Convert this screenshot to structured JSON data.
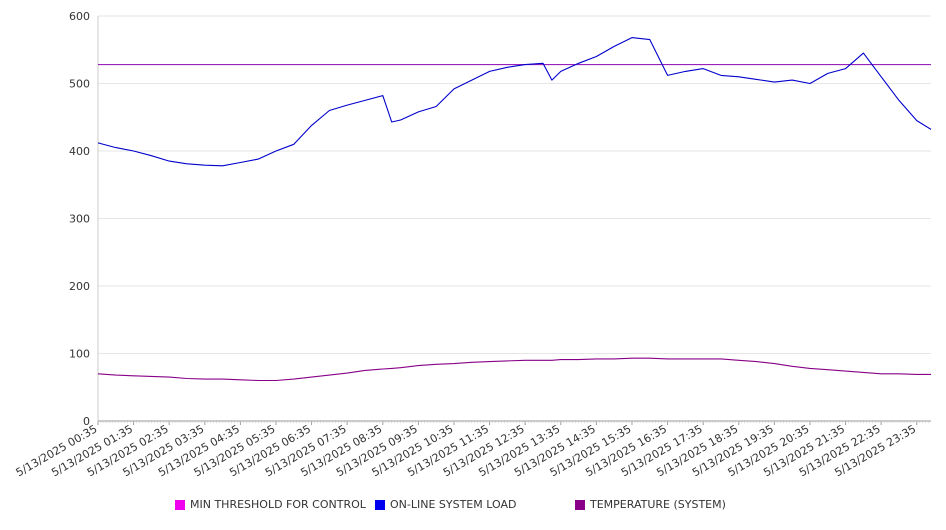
{
  "chart_data": {
    "type": "line",
    "title": "",
    "xlabel": "",
    "ylabel": "",
    "ylim": [
      0,
      600
    ],
    "yticks": [
      0,
      100,
      200,
      300,
      400,
      500,
      600
    ],
    "grid": true,
    "legend_position": "bottom",
    "x_ticks": [
      "5/13/2025 00:35",
      "5/13/2025 01:35",
      "5/13/2025 02:35",
      "5/13/2025 03:35",
      "5/13/2025 04:35",
      "5/13/2025 05:35",
      "5/13/2025 06:35",
      "5/13/2025 07:35",
      "5/13/2025 08:35",
      "5/13/2025 09:35",
      "5/13/2025 10:35",
      "5/13/2025 11:35",
      "5/13/2025 12:35",
      "5/13/2025 13:35",
      "5/13/2025 14:35",
      "5/13/2025 15:35",
      "5/13/2025 16:35",
      "5/13/2025 17:35",
      "5/13/2025 18:35",
      "5/13/2025 19:35",
      "5/13/2025 20:35",
      "5/13/2025 21:35",
      "5/13/2025 22:35",
      "5/13/2025 23:35"
    ],
    "x": [
      "00:35",
      "01:05",
      "01:35",
      "02:05",
      "02:35",
      "03:05",
      "03:35",
      "04:05",
      "04:35",
      "05:05",
      "05:35",
      "06:05",
      "06:35",
      "07:05",
      "07:35",
      "08:05",
      "08:35",
      "08:50",
      "09:05",
      "09:35",
      "10:05",
      "10:35",
      "11:05",
      "11:35",
      "12:05",
      "12:35",
      "13:05",
      "13:20",
      "13:35",
      "14:05",
      "14:35",
      "15:05",
      "15:35",
      "16:05",
      "16:35",
      "17:05",
      "17:35",
      "18:05",
      "18:35",
      "19:05",
      "19:35",
      "20:05",
      "20:35",
      "21:05",
      "21:35",
      "22:05",
      "22:35",
      "23:05",
      "23:35",
      "23:59"
    ],
    "series": [
      {
        "name": "MIN THRESHOLD FOR CONTROL",
        "color": "#ee00ee",
        "line_color": "#9922bb",
        "values": [
          528,
          528,
          528,
          528,
          528,
          528,
          528,
          528,
          528,
          528,
          528,
          528,
          528,
          528,
          528,
          528,
          528,
          528,
          528,
          528,
          528,
          528,
          528,
          528,
          528,
          528,
          528,
          528,
          528,
          528,
          528,
          528,
          528,
          528,
          528,
          528,
          528,
          528,
          528,
          528,
          528,
          528,
          528,
          528,
          528,
          528,
          528,
          528,
          528,
          528
        ]
      },
      {
        "name": "ON-LINE SYSTEM LOAD",
        "color": "#0000ee",
        "line_color": "#0000cc",
        "values": [
          412,
          405,
          400,
          393,
          385,
          381,
          379,
          378,
          383,
          388,
          400,
          410,
          438,
          460,
          468,
          475,
          482,
          443,
          446,
          458,
          466,
          492,
          505,
          518,
          524,
          528,
          530,
          505,
          518,
          530,
          540,
          555,
          568,
          565,
          512,
          518,
          522,
          512,
          510,
          506,
          502,
          505,
          500,
          515,
          522,
          545,
          510,
          475,
          445,
          432
        ]
      },
      {
        "name": "TEMPERATURE (SYSTEM)",
        "color": "#880088",
        "line_color": "#880088",
        "values": [
          70,
          68,
          67,
          66,
          65,
          63,
          62,
          62,
          61,
          60,
          60,
          62,
          65,
          68,
          71,
          75,
          77,
          78,
          79,
          82,
          84,
          85,
          87,
          88,
          89,
          90,
          90,
          90,
          91,
          91,
          92,
          92,
          93,
          93,
          92,
          92,
          92,
          92,
          90,
          88,
          85,
          81,
          78,
          76,
          74,
          72,
          70,
          70,
          69,
          69
        ]
      }
    ]
  }
}
